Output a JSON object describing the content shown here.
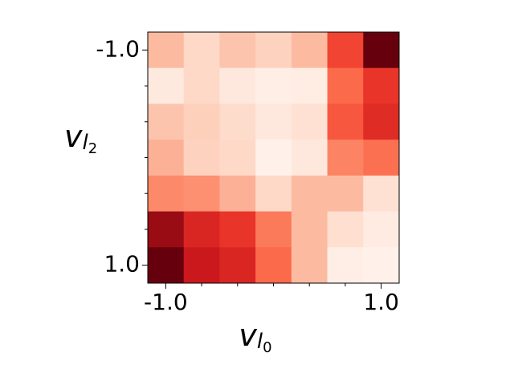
{
  "chart_data": {
    "type": "heatmap",
    "colormap": "Reds",
    "xlabel": [
      "v",
      "l",
      "0"
    ],
    "ylabel": [
      "v",
      "l",
      "2"
    ],
    "xlim": [
      -1.1667,
      1.1667
    ],
    "ylim": [
      -1.1667,
      1.1667
    ],
    "y_inverted": true,
    "xticks": [
      {
        "value": -1,
        "label": "-1.0"
      },
      {
        "value": 1,
        "label": "1.0"
      }
    ],
    "yticks": [
      {
        "value": -1,
        "label": "-1.0"
      },
      {
        "value": 1,
        "label": "1.0"
      }
    ],
    "xminorticks": [
      -0.6667,
      -0.3333,
      0,
      0.3333,
      0.6667
    ],
    "yminorticks": [
      -0.6667,
      -0.3333,
      0,
      0.3333,
      0.6667
    ],
    "z": [
      [
        0.25,
        0.15,
        0.22,
        0.17,
        0.25,
        0.6,
        1.0
      ],
      [
        0.07,
        0.15,
        0.08,
        0.04,
        0.05,
        0.5,
        0.65
      ],
      [
        0.22,
        0.18,
        0.14,
        0.08,
        0.12,
        0.55,
        0.68
      ],
      [
        0.28,
        0.17,
        0.15,
        0.03,
        0.08,
        0.42,
        0.48
      ],
      [
        0.4,
        0.38,
        0.28,
        0.15,
        0.25,
        0.25,
        0.12
      ],
      [
        0.9,
        0.7,
        0.65,
        0.45,
        0.25,
        0.13,
        0.06
      ],
      [
        1.0,
        0.75,
        0.7,
        0.5,
        0.25,
        0.04,
        0.03
      ]
    ]
  }
}
